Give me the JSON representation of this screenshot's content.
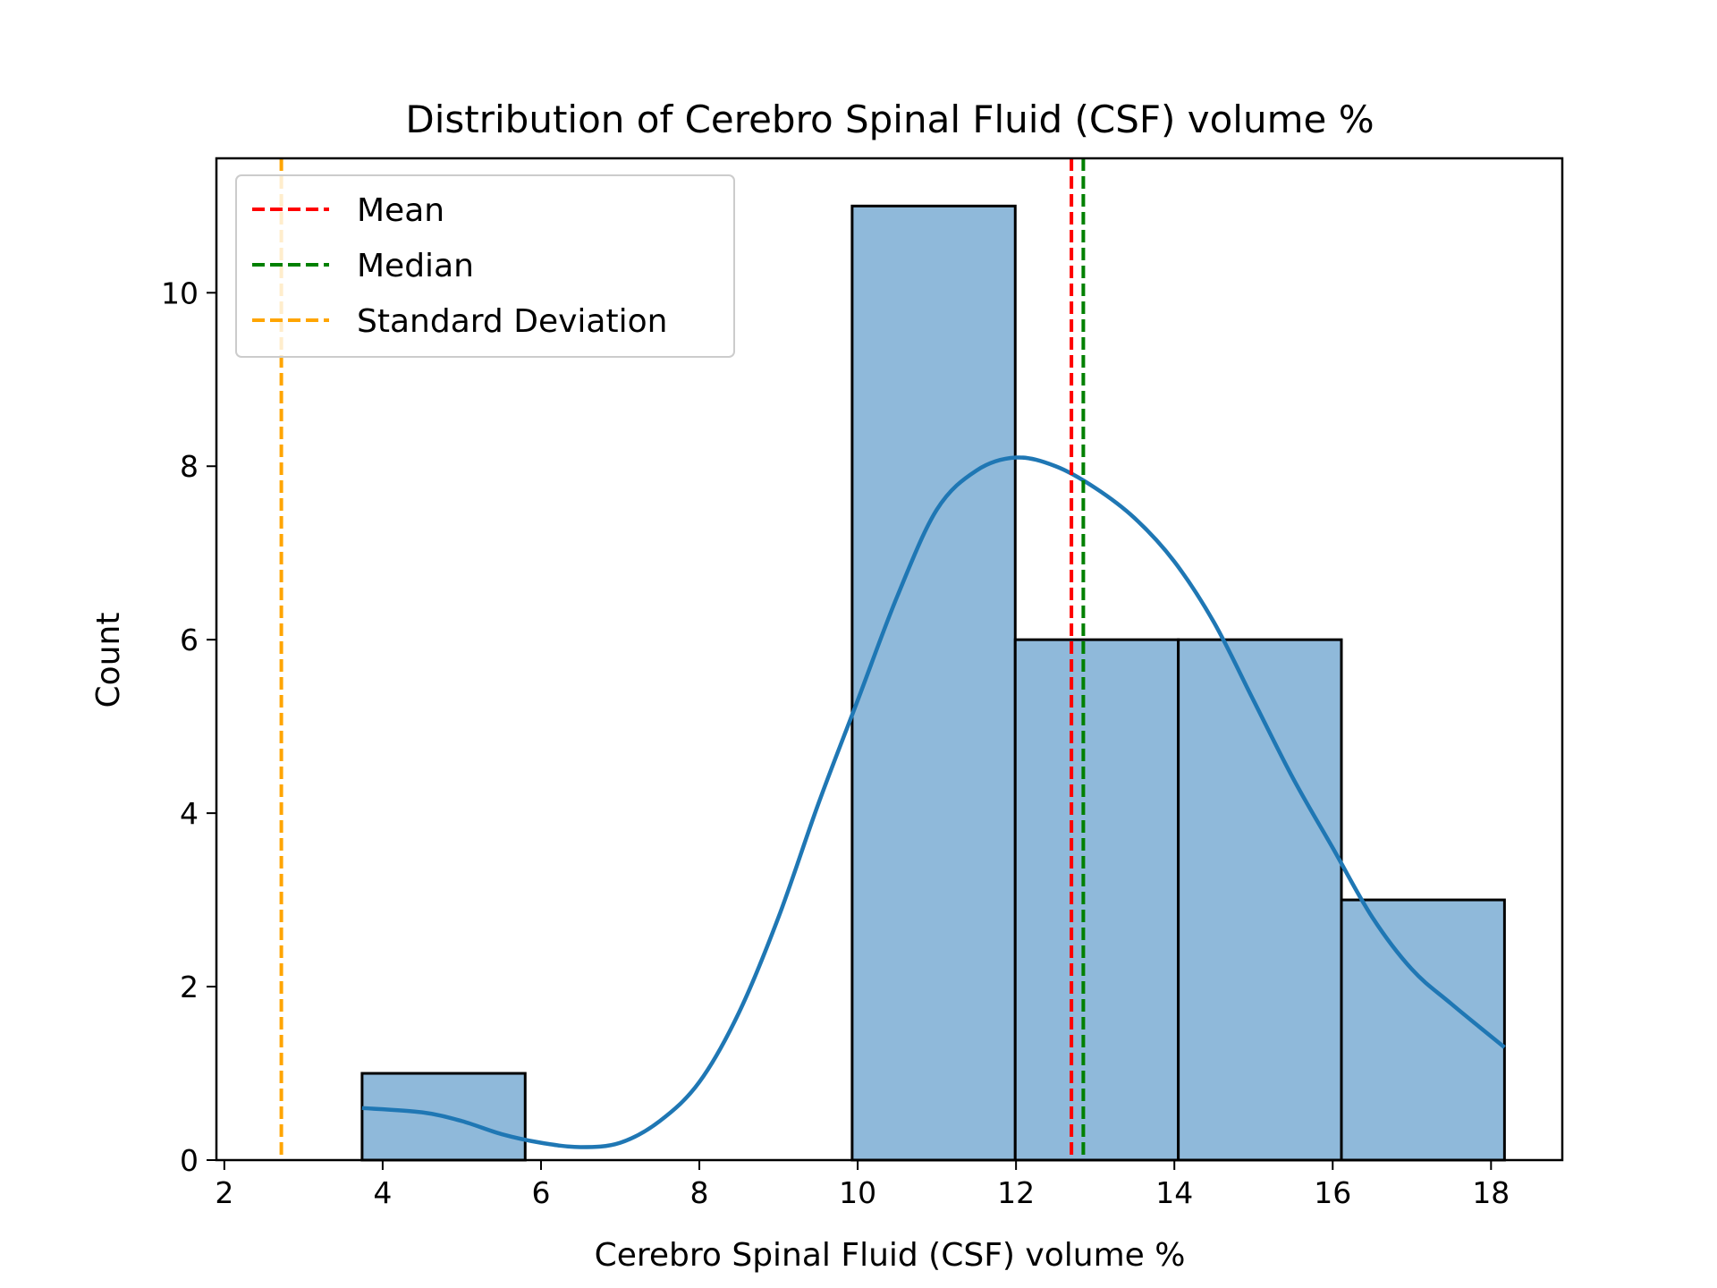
{
  "chart_data": {
    "type": "bar",
    "title": "Distribution of Cerebro Spinal Fluid (CSF) volume %",
    "xlabel": "Cerebro Spinal Fluid (CSF) volume %",
    "ylabel": "Count",
    "xlim": [
      1.9,
      18.9
    ],
    "ylim": [
      0,
      11.55
    ],
    "xticks": [
      2,
      4,
      6,
      8,
      10,
      12,
      14,
      16,
      18
    ],
    "yticks": [
      0,
      2,
      4,
      6,
      8,
      10
    ],
    "grid": false,
    "legend_position": "top-left",
    "bins": [
      {
        "x0": 3.74,
        "x1": 5.8,
        "count": 1
      },
      {
        "x0": 5.8,
        "x1": 7.86,
        "count": 0
      },
      {
        "x0": 7.86,
        "x1": 9.93,
        "count": 0
      },
      {
        "x0": 9.93,
        "x1": 11.99,
        "count": 11
      },
      {
        "x0": 11.99,
        "x1": 14.05,
        "count": 6
      },
      {
        "x0": 14.05,
        "x1": 16.11,
        "count": 6
      },
      {
        "x0": 16.11,
        "x1": 18.17,
        "count": 3
      }
    ],
    "kde": {
      "x": [
        3.74,
        4.5,
        5.0,
        5.5,
        6.0,
        6.5,
        7.0,
        7.5,
        8.0,
        8.5,
        9.0,
        9.5,
        10.0,
        10.5,
        11.0,
        11.5,
        12.0,
        12.5,
        13.0,
        13.5,
        14.0,
        14.5,
        15.0,
        15.5,
        16.0,
        16.5,
        17.0,
        17.5,
        18.17
      ],
      "y": [
        0.6,
        0.55,
        0.45,
        0.3,
        0.2,
        0.15,
        0.2,
        0.45,
        0.9,
        1.7,
        2.8,
        4.1,
        5.3,
        6.5,
        7.5,
        7.95,
        8.1,
        8.0,
        7.75,
        7.4,
        6.9,
        6.2,
        5.3,
        4.4,
        3.6,
        2.8,
        2.2,
        1.8,
        1.3
      ]
    },
    "reference_lines": [
      {
        "label": "Mean",
        "x": 12.7,
        "color": "#ff0000"
      },
      {
        "label": "Median",
        "x": 12.85,
        "color": "#008000"
      },
      {
        "label": "Standard Deviation",
        "x": 2.72,
        "color": "#ffa500"
      }
    ],
    "bar_color": "#8fb9da",
    "kde_color": "#1f77b4"
  }
}
